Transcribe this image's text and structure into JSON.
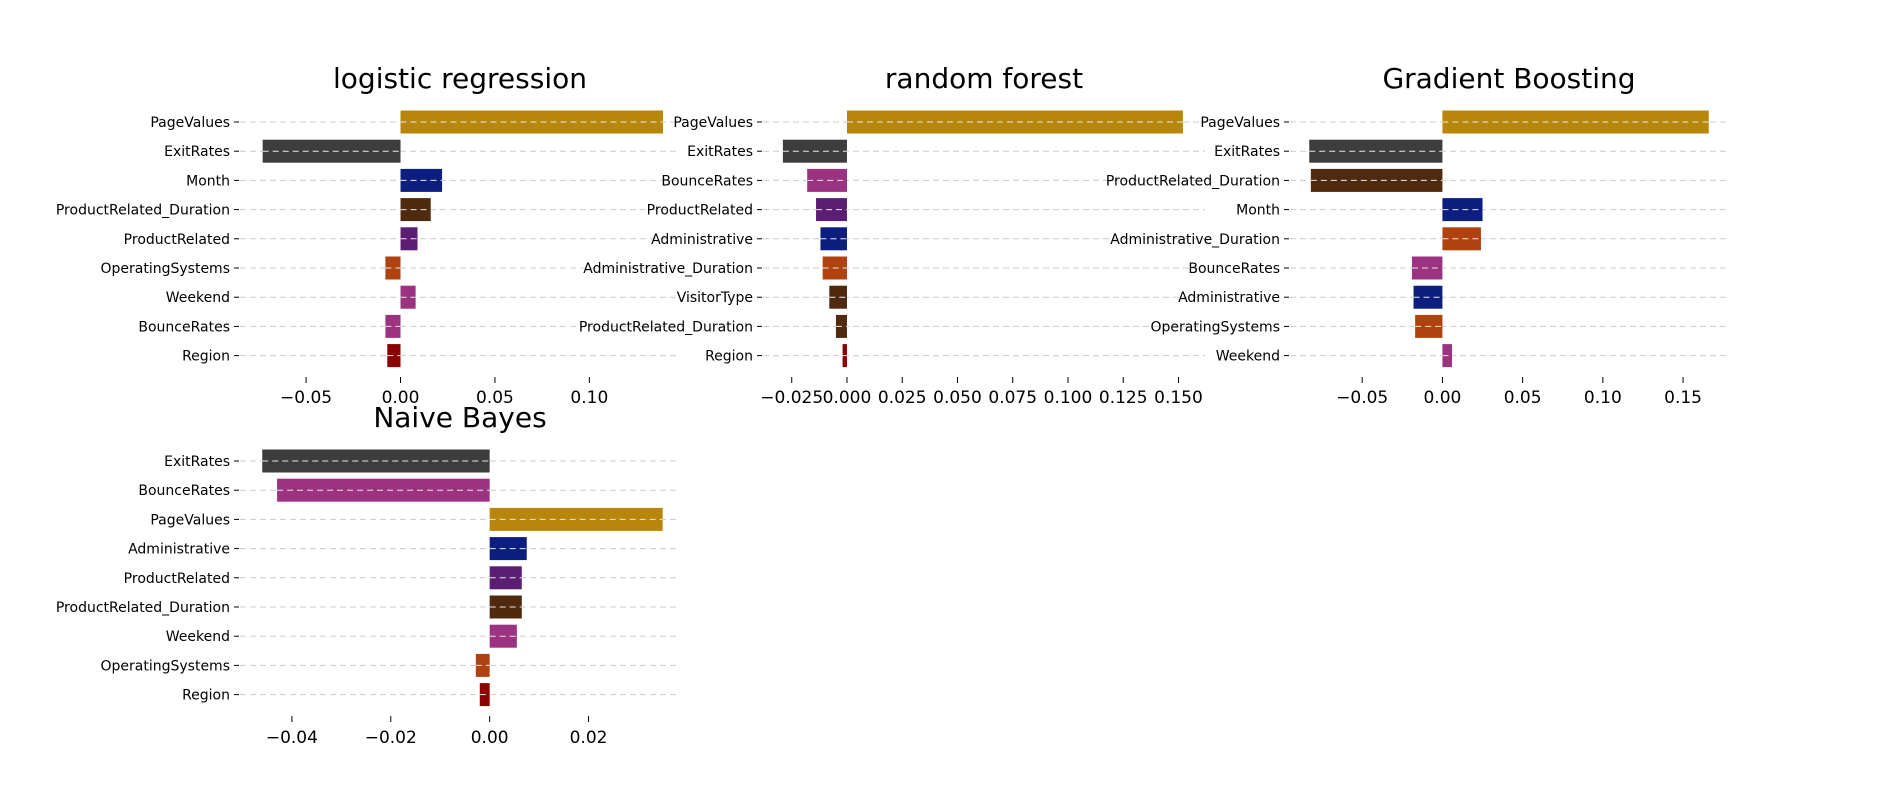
{
  "colors": {
    "PageValues": "#b8860b",
    "ExitRates": "#3d3d3d",
    "Month": "#0c1f7f",
    "ProductRelated_Duration": "#4f2a0f",
    "ProductRelated": "#5c1e72",
    "OperatingSystems": "#b0420f",
    "Weekend": "#9b3380",
    "BounceRates": "#9b3380",
    "Region": "#8b0000",
    "Administrative": "#0c1f7f",
    "Administrative_Duration": "#b0420f",
    "VisitorType": "#4f2a0f",
    "grid": "#cccccc"
  },
  "chart_data": [
    {
      "type": "bar",
      "orientation": "horizontal",
      "title": "logistic regression",
      "categories": [
        "PageValues",
        "ExitRates",
        "Month",
        "ProductRelated_Duration",
        "ProductRelated",
        "OperatingSystems",
        "Weekend",
        "BounceRates",
        "Region"
      ],
      "values": [
        0.139,
        -0.073,
        0.022,
        0.016,
        0.009,
        -0.008,
        0.008,
        -0.008,
        -0.007
      ],
      "xlim": [
        -0.085,
        0.148
      ],
      "xticks": [
        -0.05,
        0.0,
        0.05,
        0.1
      ],
      "xtick_labels": [
        "−0.05",
        "0.00",
        "0.05",
        "0.10"
      ],
      "grid": "y-dashed"
    },
    {
      "type": "bar",
      "orientation": "horizontal",
      "title": "random forest",
      "categories": [
        "PageValues",
        "ExitRates",
        "BounceRates",
        "ProductRelated",
        "Administrative",
        "Administrative_Duration",
        "VisitorType",
        "ProductRelated_Duration",
        "Region"
      ],
      "values": [
        0.152,
        -0.029,
        -0.018,
        -0.014,
        -0.012,
        -0.011,
        -0.008,
        -0.005,
        -0.002
      ],
      "xlim": [
        -0.038,
        0.162
      ],
      "xticks": [
        -0.025,
        0.0,
        0.025,
        0.05,
        0.075,
        0.1,
        0.125,
        0.15
      ],
      "xtick_labels": [
        "−0.025",
        "0.000",
        "0.025",
        "0.050",
        "0.075",
        "0.100",
        "0.125",
        "0.150"
      ],
      "grid": "y-dashed"
    },
    {
      "type": "bar",
      "orientation": "horizontal",
      "title": "Gradient Boosting",
      "categories": [
        "PageValues",
        "ExitRates",
        "ProductRelated_Duration",
        "Month",
        "Administrative_Duration",
        "BounceRates",
        "Administrative",
        "OperatingSystems",
        "Weekend"
      ],
      "values": [
        0.166,
        -0.083,
        -0.082,
        0.025,
        0.024,
        -0.019,
        -0.018,
        -0.017,
        0.006
      ],
      "xlim": [
        -0.095,
        0.178
      ],
      "xticks": [
        -0.05,
        0.0,
        0.05,
        0.1,
        0.15
      ],
      "xtick_labels": [
        "−0.05",
        "0.00",
        "0.05",
        "0.10",
        "0.15"
      ],
      "grid": "y-dashed"
    },
    {
      "type": "bar",
      "orientation": "horizontal",
      "title": "Naive Bayes",
      "categories": [
        "ExitRates",
        "BounceRates",
        "PageValues",
        "Administrative",
        "ProductRelated",
        "ProductRelated_Duration",
        "Weekend",
        "OperatingSystems",
        "Region"
      ],
      "values": [
        -0.046,
        -0.043,
        0.035,
        0.0075,
        0.0065,
        0.0065,
        0.0055,
        -0.0028,
        -0.002
      ],
      "xlim": [
        -0.0505,
        0.0385
      ],
      "xticks": [
        -0.04,
        -0.02,
        0.0,
        0.02
      ],
      "xtick_labels": [
        "−0.04",
        "−0.02",
        "0.00",
        "0.02"
      ],
      "grid": "y-dashed"
    }
  ]
}
